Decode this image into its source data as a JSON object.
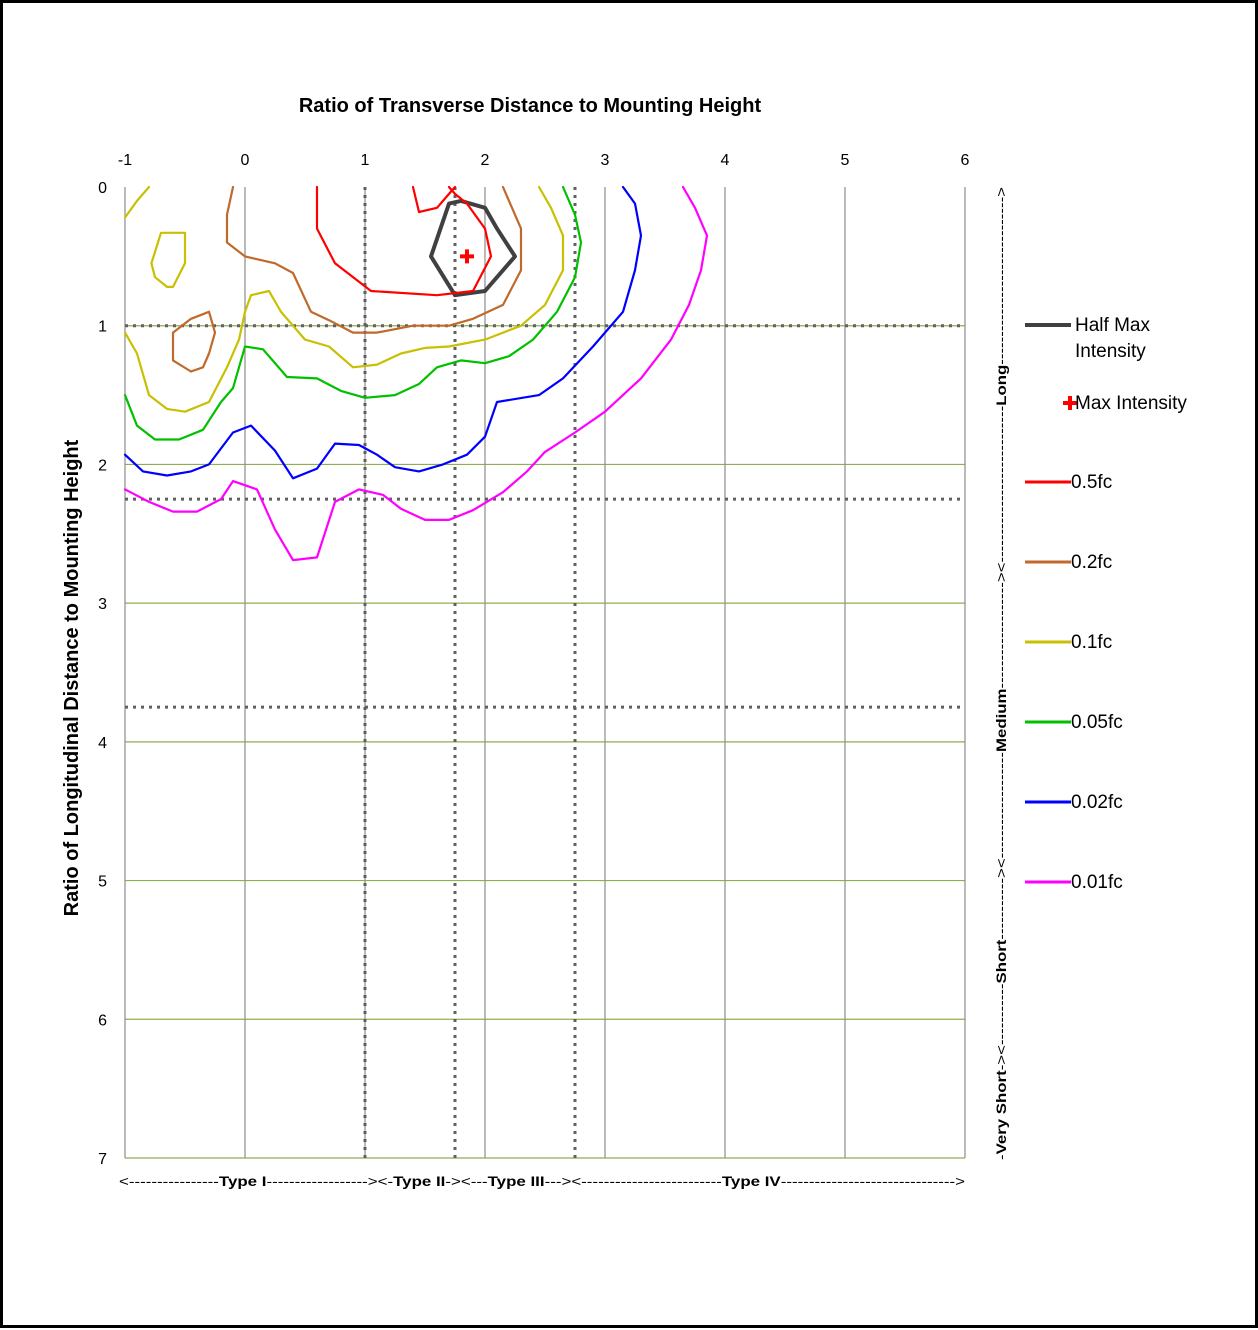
{
  "chart_data": {
    "type": "line",
    "title": "Ratio of Transverse Distance to Mounting Height",
    "xlabel": "",
    "ylabel": "Ratio of Longitudinal Distance to Mounting Height",
    "x_ticks": [
      "-1",
      "0",
      "1",
      "2",
      "3",
      "4",
      "5",
      "6"
    ],
    "y_ticks": [
      "0",
      "1",
      "2",
      "3",
      "4",
      "5",
      "6",
      "7"
    ],
    "xlim": [
      -1,
      6
    ],
    "ylim": [
      0,
      7
    ],
    "y_inverted": true,
    "x_axis_position": "top",
    "grid": true,
    "legend_position": "right",
    "reference_lines": {
      "vertical": [
        1,
        1.75,
        2.75
      ],
      "horizontal": [
        1,
        2.25,
        3.75
      ]
    },
    "max_intensity": {
      "name": "Max Intensity",
      "x": 1.85,
      "y": 0.5,
      "color": "#ff0000"
    },
    "series": [
      {
        "name": "Half Max Intensity",
        "color": "#404040",
        "segments": [
          [
            [
              1.75,
              0.78
            ],
            [
              1.55,
              0.5
            ],
            [
              1.7,
              0.12
            ],
            [
              1.8,
              0.1
            ],
            [
              2.0,
              0.15
            ],
            [
              2.1,
              0.3
            ],
            [
              2.25,
              0.5
            ],
            [
              2.0,
              0.75
            ],
            [
              1.75,
              0.78
            ]
          ]
        ]
      },
      {
        "name": "0.5fc",
        "color": "#ff0000",
        "segments": [
          [
            [
              0.6,
              0.0
            ],
            [
              0.6,
              0.3
            ],
            [
              0.75,
              0.55
            ],
            [
              1.05,
              0.75
            ],
            [
              1.6,
              0.78
            ],
            [
              1.9,
              0.75
            ],
            [
              2.05,
              0.5
            ],
            [
              2.0,
              0.3
            ],
            [
              1.85,
              0.12
            ],
            [
              1.75,
              0.05
            ],
            [
              1.7,
              0.0
            ]
          ],
          [
            [
              1.4,
              0.0
            ],
            [
              1.45,
              0.18
            ],
            [
              1.6,
              0.15
            ],
            [
              1.7,
              0.05
            ],
            [
              1.75,
              0.0
            ]
          ]
        ]
      },
      {
        "name": "0.2fc",
        "color": "#c0692a",
        "segments": [
          [
            [
              -0.1,
              0.0
            ],
            [
              -0.15,
              0.2
            ],
            [
              -0.15,
              0.4
            ],
            [
              0.0,
              0.5
            ],
            [
              0.25,
              0.55
            ],
            [
              0.4,
              0.62
            ],
            [
              0.55,
              0.9
            ],
            [
              0.7,
              0.96
            ],
            [
              0.9,
              1.05
            ],
            [
              1.1,
              1.05
            ],
            [
              1.4,
              1.0
            ],
            [
              1.7,
              1.0
            ],
            [
              1.9,
              0.95
            ],
            [
              2.15,
              0.85
            ],
            [
              2.3,
              0.6
            ],
            [
              2.3,
              0.3
            ],
            [
              2.2,
              0.1
            ],
            [
              2.15,
              0.0
            ]
          ],
          [
            [
              -0.45,
              1.33
            ],
            [
              -0.6,
              1.25
            ],
            [
              -0.6,
              1.05
            ],
            [
              -0.45,
              0.95
            ],
            [
              -0.3,
              0.9
            ],
            [
              -0.25,
              1.05
            ],
            [
              -0.3,
              1.2
            ],
            [
              -0.35,
              1.3
            ],
            [
              -0.45,
              1.33
            ]
          ]
        ]
      },
      {
        "name": "0.1fc",
        "color": "#c8c000",
        "segments": [
          [
            [
              -1.0,
              0.22
            ],
            [
              -0.9,
              0.1
            ],
            [
              -0.8,
              0.0
            ]
          ],
          [
            [
              -0.65,
              0.72
            ],
            [
              -0.75,
              0.65
            ],
            [
              -0.78,
              0.55
            ],
            [
              -0.7,
              0.33
            ],
            [
              -0.5,
              0.33
            ],
            [
              -0.5,
              0.55
            ],
            [
              -0.6,
              0.72
            ],
            [
              -0.65,
              0.72
            ]
          ],
          [
            [
              -1.0,
              1.05
            ],
            [
              -0.9,
              1.2
            ],
            [
              -0.8,
              1.5
            ],
            [
              -0.65,
              1.6
            ],
            [
              -0.5,
              1.62
            ],
            [
              -0.3,
              1.55
            ],
            [
              -0.15,
              1.3
            ],
            [
              -0.05,
              1.1
            ],
            [
              0.0,
              0.9
            ],
            [
              0.05,
              0.78
            ],
            [
              0.2,
              0.75
            ],
            [
              0.3,
              0.9
            ],
            [
              0.5,
              1.1
            ],
            [
              0.7,
              1.15
            ],
            [
              0.9,
              1.3
            ],
            [
              1.1,
              1.28
            ],
            [
              1.3,
              1.2
            ],
            [
              1.5,
              1.16
            ],
            [
              1.7,
              1.15
            ],
            [
              2.0,
              1.1
            ],
            [
              2.3,
              1.0
            ],
            [
              2.5,
              0.85
            ],
            [
              2.65,
              0.6
            ],
            [
              2.65,
              0.35
            ],
            [
              2.55,
              0.15
            ],
            [
              2.45,
              0.0
            ]
          ]
        ]
      },
      {
        "name": "0.05fc",
        "color": "#00c000",
        "segments": [
          [
            [
              -1.0,
              1.5
            ],
            [
              -0.9,
              1.72
            ],
            [
              -0.75,
              1.82
            ],
            [
              -0.55,
              1.82
            ],
            [
              -0.35,
              1.75
            ],
            [
              -0.2,
              1.55
            ],
            [
              -0.1,
              1.45
            ],
            [
              0.0,
              1.15
            ],
            [
              0.15,
              1.17
            ],
            [
              0.35,
              1.37
            ],
            [
              0.6,
              1.38
            ],
            [
              0.8,
              1.47
            ],
            [
              1.0,
              1.52
            ],
            [
              1.25,
              1.5
            ],
            [
              1.45,
              1.42
            ],
            [
              1.6,
              1.3
            ],
            [
              1.8,
              1.25
            ],
            [
              2.0,
              1.27
            ],
            [
              2.2,
              1.22
            ],
            [
              2.4,
              1.1
            ],
            [
              2.6,
              0.9
            ],
            [
              2.75,
              0.65
            ],
            [
              2.8,
              0.4
            ],
            [
              2.75,
              0.2
            ],
            [
              2.65,
              0.0
            ]
          ]
        ]
      },
      {
        "name": "0.02fc",
        "color": "#0000ff",
        "segments": [
          [
            [
              -1.0,
              1.93
            ],
            [
              -0.85,
              2.05
            ],
            [
              -0.65,
              2.08
            ],
            [
              -0.45,
              2.05
            ],
            [
              -0.3,
              2.0
            ],
            [
              -0.1,
              1.77
            ],
            [
              0.05,
              1.72
            ],
            [
              0.25,
              1.9
            ],
            [
              0.4,
              2.1
            ],
            [
              0.6,
              2.03
            ],
            [
              0.75,
              1.85
            ],
            [
              0.95,
              1.86
            ],
            [
              1.1,
              1.93
            ],
            [
              1.25,
              2.02
            ],
            [
              1.45,
              2.05
            ],
            [
              1.65,
              2.0
            ],
            [
              1.85,
              1.93
            ],
            [
              2.0,
              1.8
            ],
            [
              2.1,
              1.55
            ],
            [
              2.45,
              1.5
            ],
            [
              2.65,
              1.38
            ],
            [
              2.9,
              1.15
            ],
            [
              3.15,
              0.9
            ],
            [
              3.25,
              0.6
            ],
            [
              3.3,
              0.35
            ],
            [
              3.25,
              0.12
            ],
            [
              3.15,
              0.0
            ]
          ]
        ]
      },
      {
        "name": "0.01fc",
        "color": "#ff00ff",
        "segments": [
          [
            [
              -1.0,
              2.18
            ],
            [
              -0.8,
              2.27
            ],
            [
              -0.6,
              2.34
            ],
            [
              -0.4,
              2.34
            ],
            [
              -0.2,
              2.25
            ],
            [
              -0.1,
              2.12
            ],
            [
              0.1,
              2.18
            ],
            [
              0.25,
              2.47
            ],
            [
              0.4,
              2.69
            ],
            [
              0.6,
              2.67
            ],
            [
              0.75,
              2.27
            ],
            [
              0.95,
              2.18
            ],
            [
              1.15,
              2.22
            ],
            [
              1.3,
              2.32
            ],
            [
              1.5,
              2.4
            ],
            [
              1.7,
              2.4
            ],
            [
              1.9,
              2.33
            ],
            [
              2.15,
              2.2
            ],
            [
              2.35,
              2.05
            ],
            [
              2.5,
              1.91
            ],
            [
              2.75,
              1.77
            ],
            [
              3.0,
              1.62
            ],
            [
              3.3,
              1.38
            ],
            [
              3.55,
              1.1
            ],
            [
              3.7,
              0.85
            ],
            [
              3.8,
              0.6
            ],
            [
              3.85,
              0.35
            ],
            [
              3.75,
              0.15
            ],
            [
              3.65,
              0.0
            ]
          ]
        ]
      }
    ],
    "right_annotations": [
      "-Very Short-",
      ">",
      "<-----------Short-----------",
      ">",
      "<-------------------Medium-------------------",
      ">",
      "<----------------------------Long------------------------------",
      ">"
    ],
    "bottom_annotations": [
      "<----------------Type I------------------",
      "><-Type II-><---Type III---><",
      "-------------------------Type IV------------------------------->"
    ]
  }
}
